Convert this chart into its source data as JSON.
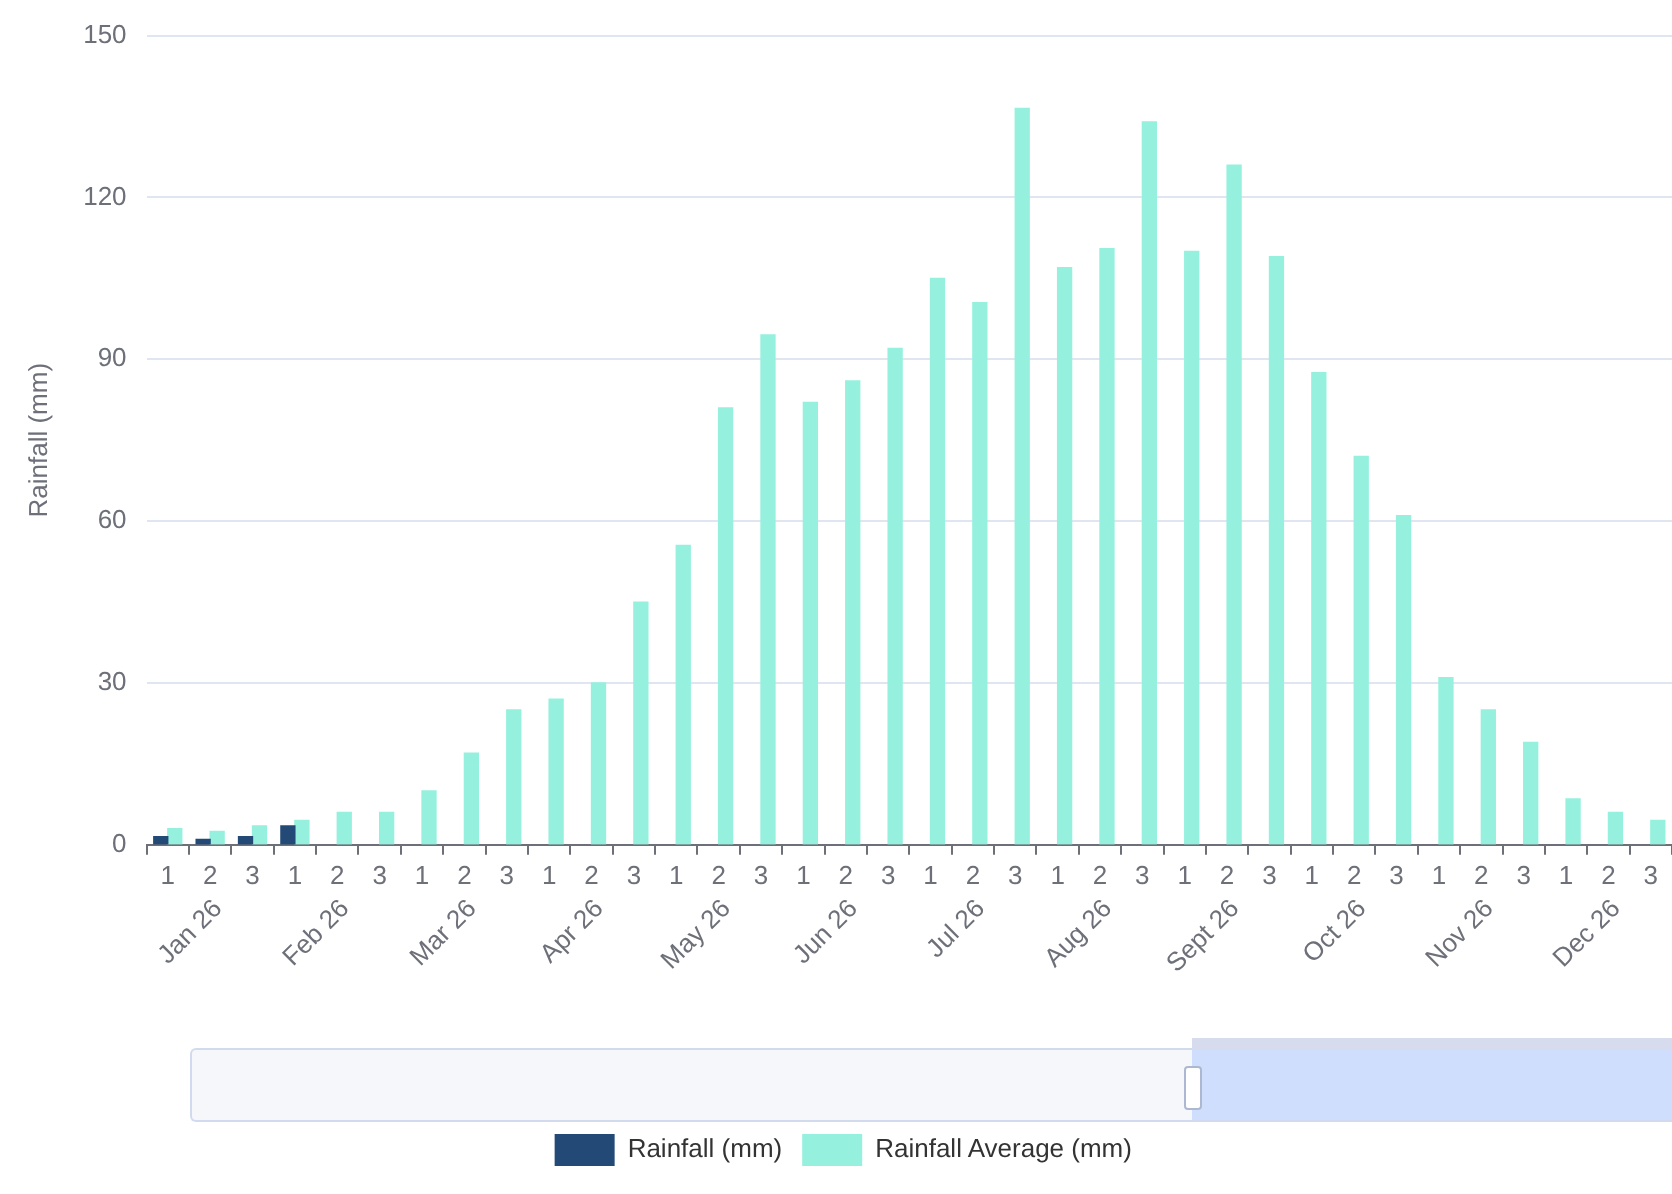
{
  "chart_data": {
    "type": "bar",
    "categories": [
      "1",
      "2",
      "3",
      "1",
      "2",
      "3",
      "1",
      "2",
      "3",
      "1",
      "2",
      "3",
      "1",
      "2",
      "3",
      "1",
      "2",
      "3",
      "1",
      "2",
      "3",
      "1",
      "2",
      "3",
      "1",
      "2",
      "3",
      "1",
      "2",
      "3",
      "1",
      "2",
      "3",
      "1",
      "2",
      "3"
    ],
    "annotations": [
      "Jan 26",
      "Feb 26",
      "Mar 26",
      "Apr 26",
      "May 26",
      "Jun 26",
      "Jul 26",
      "Aug 26",
      "Sept 26",
      "Oct 26",
      "Nov 26",
      "Dec 26"
    ],
    "ylabel": "Rainfall (mm)",
    "series": [
      {
        "name": "Rainfall (mm)",
        "color": "#234a77",
        "values": [
          1.5,
          1,
          1.5,
          3.5,
          null,
          null,
          null,
          null,
          null,
          null,
          null,
          null,
          null,
          null,
          null,
          null,
          null,
          null,
          null,
          null,
          null,
          null,
          null,
          null,
          null,
          null,
          null,
          null,
          null,
          null,
          null,
          null,
          null,
          null,
          null,
          null
        ]
      },
      {
        "name": "Rainfall Average (mm)",
        "color": "#95f1de",
        "values": [
          3,
          2.5,
          3.5,
          4.5,
          6,
          6,
          10,
          17,
          25,
          27,
          30,
          45,
          55.5,
          81,
          94.5,
          82,
          86,
          92,
          105,
          100.5,
          136.5,
          107,
          110.5,
          134,
          110,
          126,
          109,
          87.5,
          72,
          61,
          31,
          25,
          19,
          8.5,
          6,
          4.5
        ]
      }
    ],
    "ylim": [
      0,
      150
    ],
    "yticks": [
      0,
      30,
      60,
      90,
      120,
      150
    ],
    "grid": "y",
    "legend": "bottom"
  }
}
